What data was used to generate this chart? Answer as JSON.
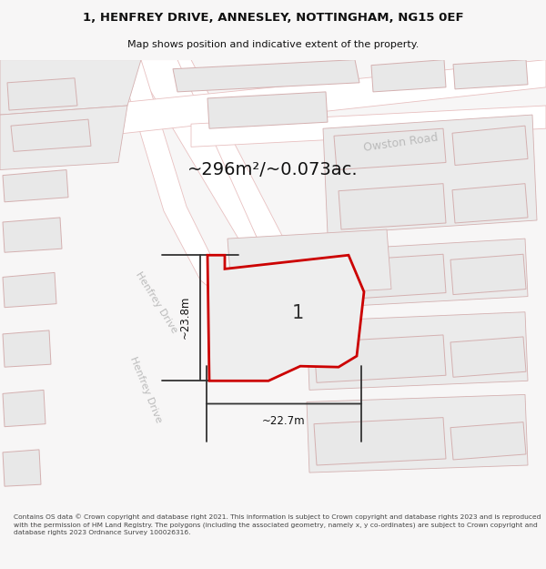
{
  "title_line1": "1, HENFREY DRIVE, ANNESLEY, NOTTINGHAM, NG15 0EF",
  "title_line2": "Map shows position and indicative extent of the property.",
  "area_text": "~296m²/~0.073ac.",
  "plot_label": "1",
  "dim_vertical": "~23.8m",
  "dim_horizontal": "~22.7m",
  "road_label_upper": "Henfrey Drive",
  "road_label_lower": "Henfrey Drive",
  "road_label_owston": "Owston Road",
  "footer": "Contains OS data © Crown copyright and database right 2021. This information is subject to Crown copyright and database rights 2023 and is reproduced with the permission of HM Land Registry. The polygons (including the associated geometry, namely x, y co-ordinates) are subject to Crown copyright and database rights 2023 Ordnance Survey 100026316.",
  "bg_color": "#f7f6f6",
  "map_bg": "#f7f6f6",
  "building_fill": "#e8e8e8",
  "building_edge": "#d4b0b0",
  "road_fill": "#ffffff",
  "road_edge": "#e8c0c0",
  "parcel_fill": "#ebebeb",
  "parcel_edge": "#d4b0b0",
  "plot_fill": "#eeeeee",
  "plot_edge": "#cc0000",
  "dim_color": "#333333",
  "text_dark": "#111111",
  "text_gray": "#bbbbbb"
}
